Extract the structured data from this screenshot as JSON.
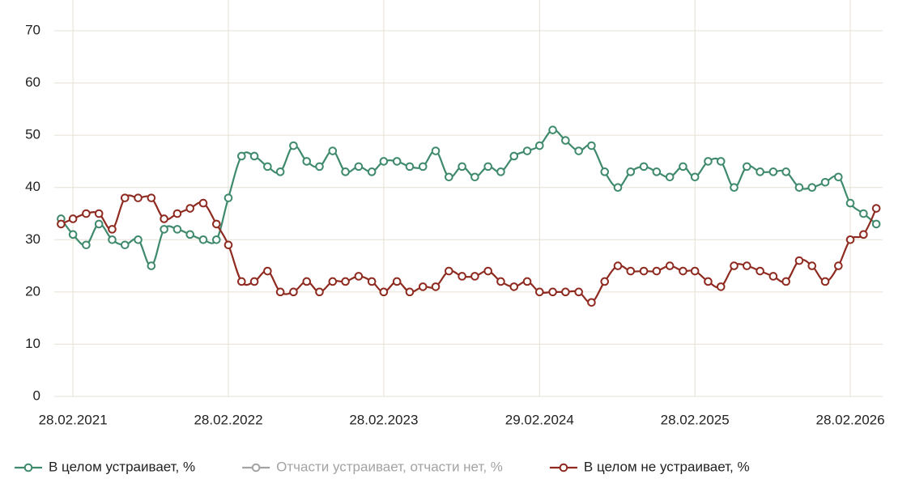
{
  "chart_data": {
    "type": "line",
    "x": [
      "2021-01-31",
      "2021-02-28",
      "2021-03-31",
      "2021-04-30",
      "2021-05-31",
      "2021-06-30",
      "2021-07-31",
      "2021-08-31",
      "2021-09-30",
      "2021-10-31",
      "2021-11-30",
      "2021-12-31",
      "2022-01-31",
      "2022-02-28",
      "2022-03-31",
      "2022-04-30",
      "2022-05-31",
      "2022-06-30",
      "2022-07-31",
      "2022-08-31",
      "2022-09-30",
      "2022-10-31",
      "2022-11-30",
      "2022-12-31",
      "2023-01-31",
      "2023-02-28",
      "2023-03-31",
      "2023-04-30",
      "2023-05-31",
      "2023-06-30",
      "2023-07-31",
      "2023-08-31",
      "2023-09-30",
      "2023-10-31",
      "2023-11-30",
      "2023-12-31",
      "2024-01-31",
      "2024-02-29",
      "2024-03-31",
      "2024-04-30",
      "2024-05-31",
      "2024-06-30",
      "2024-07-31",
      "2024-08-31",
      "2024-09-30",
      "2024-10-31",
      "2024-11-30",
      "2024-12-31",
      "2025-01-31",
      "2025-02-28",
      "2025-03-31",
      "2025-04-30",
      "2025-05-31",
      "2025-06-30",
      "2025-07-31",
      "2025-08-31",
      "2025-09-30",
      "2025-10-31",
      "2025-11-30",
      "2025-12-31",
      "2026-01-31",
      "2026-02-28",
      "2026-03-31",
      "2026-04-30"
    ],
    "series": [
      {
        "name": "В целом устраивает, %",
        "color": "#3f8a6d",
        "values": [
          34,
          31,
          29,
          33,
          30,
          29,
          30,
          25,
          32,
          32,
          31,
          30,
          30,
          38,
          46,
          46,
          44,
          43,
          48,
          45,
          44,
          47,
          43,
          44,
          43,
          45,
          45,
          44,
          44,
          47,
          42,
          44,
          42,
          44,
          43,
          46,
          47,
          48,
          51,
          49,
          47,
          48,
          43,
          40,
          43,
          44,
          43,
          42,
          44,
          42,
          45,
          45,
          40,
          44,
          43,
          43,
          43,
          40,
          40,
          41,
          42,
          37,
          35,
          33
        ]
      },
      {
        "name": "Отчасти устраивает, отчасти нет, %",
        "color": "#a3a3a3",
        "hidden": true,
        "values": [
          null,
          null,
          null,
          null,
          null,
          null,
          null,
          null,
          null,
          null,
          null,
          null,
          null,
          null,
          null,
          null,
          null,
          null,
          null,
          null,
          null,
          null,
          null,
          null,
          null,
          null,
          null,
          null,
          null,
          null,
          null,
          null,
          null,
          null,
          null,
          null,
          null,
          null,
          null,
          null,
          null,
          null,
          null,
          null,
          null,
          null,
          null,
          null,
          null,
          null,
          null,
          null,
          null,
          null,
          null,
          null,
          null,
          null,
          null,
          null,
          null,
          null,
          null,
          null
        ]
      },
      {
        "name": "В целом не устраивает, %",
        "color": "#8e2a1f",
        "values": [
          33,
          34,
          35,
          35,
          32,
          38,
          38,
          38,
          34,
          35,
          36,
          37,
          33,
          29,
          22,
          22,
          24,
          20,
          20,
          22,
          20,
          22,
          22,
          23,
          22,
          20,
          22,
          20,
          21,
          21,
          24,
          23,
          23,
          24,
          22,
          21,
          22,
          20,
          20,
          20,
          20,
          18,
          22,
          25,
          24,
          24,
          24,
          25,
          24,
          24,
          22,
          21,
          25,
          25,
          24,
          23,
          22,
          26,
          25,
          22,
          25,
          30,
          31,
          36
        ]
      }
    ],
    "xlim": [
      "2021-01-15",
      "2026-05-15"
    ],
    "xticks": [
      {
        "value": "2021-02-28",
        "label": "28.02.2021"
      },
      {
        "value": "2022-02-28",
        "label": "28.02.2022"
      },
      {
        "value": "2023-02-28",
        "label": "28.02.2023"
      },
      {
        "value": "2024-02-29",
        "label": "29.02.2024"
      },
      {
        "value": "2025-02-28",
        "label": "28.02.2025"
      },
      {
        "value": "2026-02-28",
        "label": "28.02.2026"
      }
    ],
    "ylim": [
      0,
      70
    ],
    "yticks": [
      0,
      10,
      20,
      30,
      40,
      50,
      60,
      70
    ],
    "grid": true
  }
}
